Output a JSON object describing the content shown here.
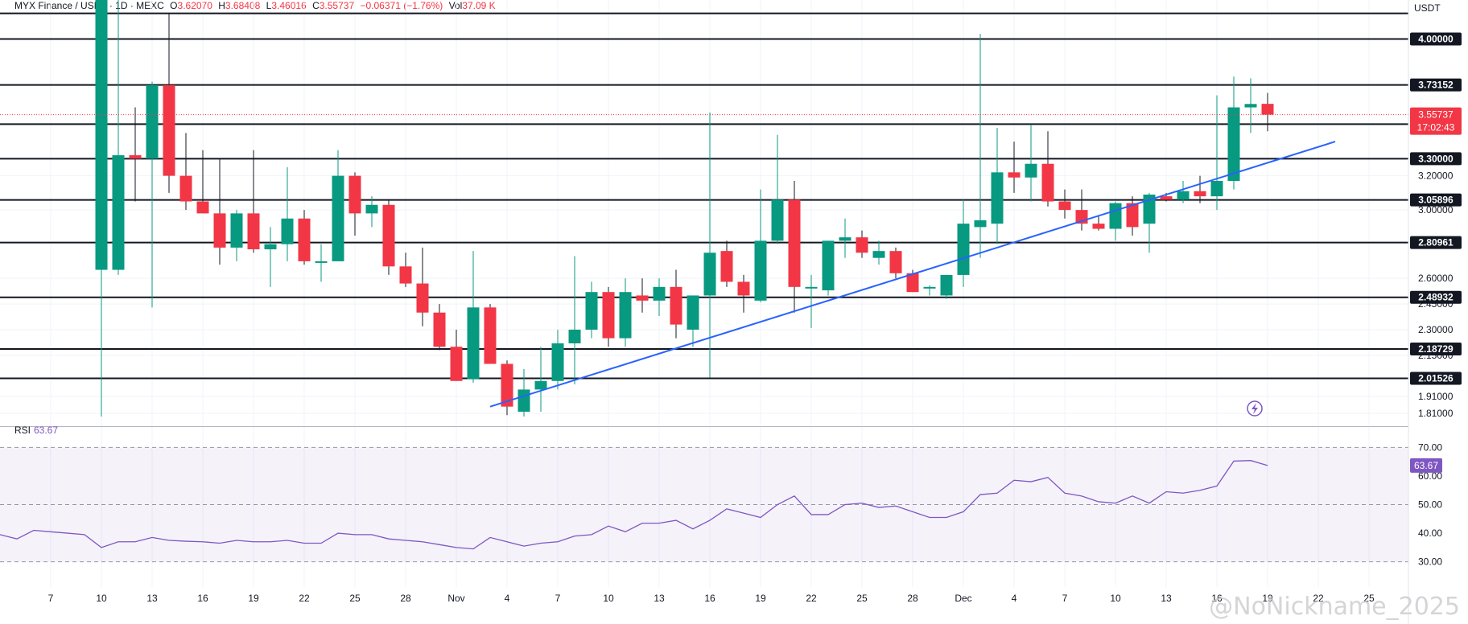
{
  "header": {
    "symbol": "MYX Finance / USDT · 1D · MEXC",
    "o_label": "O",
    "o_value": "3.62070",
    "h_label": "H",
    "h_value": "3.68408",
    "l_label": "L",
    "l_value": "3.46016",
    "c_label": "C",
    "c_value": "3.55737",
    "change": "−0.06371 (−1.76%)",
    "vol_label": "Vol",
    "vol_value": "37.09 K"
  },
  "currency_label": "USDT",
  "rsi_label": "RSI",
  "rsi_value": "63.67",
  "watermark": "@NoNickname_2025",
  "colors": {
    "up": "#089981",
    "down": "#f23645",
    "trendline": "#2962ff",
    "rsi": "#7e57c2"
  },
  "chart_data": [
    {
      "type": "candlestick",
      "title": "MYX Finance / USDT · 1D · MEXC",
      "ylabel": "USDT",
      "ylim": [
        1.8,
        4.2
      ],
      "y_axis_ticks": [
        "4.00000",
        "3.20000",
        "3.00000",
        "2.60000",
        "2.45000",
        "2.30000",
        "2.15000",
        "1.91000",
        "1.81000"
      ],
      "x_tick_labels": [
        {
          "day": 7,
          "label": "7"
        },
        {
          "day": 10,
          "label": "10"
        },
        {
          "day": 13,
          "label": "13"
        },
        {
          "day": 16,
          "label": "16"
        },
        {
          "day": 19,
          "label": "19"
        },
        {
          "day": 22,
          "label": "22"
        },
        {
          "day": 25,
          "label": "25"
        },
        {
          "day": 28,
          "label": "28"
        },
        {
          "day": 31,
          "label": "Nov"
        },
        {
          "day": 34,
          "label": "4"
        },
        {
          "day": 37,
          "label": "7"
        },
        {
          "day": 40,
          "label": "10"
        },
        {
          "day": 43,
          "label": "13"
        },
        {
          "day": 46,
          "label": "16"
        },
        {
          "day": 49,
          "label": "19"
        },
        {
          "day": 52,
          "label": "22"
        },
        {
          "day": 55,
          "label": "25"
        },
        {
          "day": 58,
          "label": "28"
        },
        {
          "day": 61,
          "label": "Dec"
        },
        {
          "day": 64,
          "label": "4"
        },
        {
          "day": 67,
          "label": "7"
        },
        {
          "day": 70,
          "label": "10"
        },
        {
          "day": 73,
          "label": "13"
        },
        {
          "day": 76,
          "label": "16"
        },
        {
          "day": 79,
          "label": "19"
        },
        {
          "day": 82,
          "label": "22"
        },
        {
          "day": 85,
          "label": "25"
        }
      ],
      "levels": [
        "4.00000",
        "3.73152",
        "3.50184",
        "3.30000",
        "3.05896",
        "2.80961",
        "2.48932",
        "2.18729",
        "2.01526"
      ],
      "last_price": "3.55737",
      "countdown": "17:02:43",
      "trendline": {
        "from": {
          "day": 33,
          "price": 1.85
        },
        "to": {
          "day": 83,
          "price": 3.4
        }
      },
      "candles": [
        {
          "d": 10,
          "o": 2.65,
          "h": 4.6,
          "l": 1.78,
          "c": 4.45
        },
        {
          "d": 11,
          "o": 2.65,
          "h": 4.5,
          "l": 2.62,
          "c": 3.32
        },
        {
          "d": 12,
          "o": 3.32,
          "h": 3.6,
          "l": 3.05,
          "c": 3.3
        },
        {
          "d": 13,
          "o": 3.3,
          "h": 3.75,
          "l": 2.43,
          "c": 3.73
        },
        {
          "d": 14,
          "o": 3.73,
          "h": 4.15,
          "l": 3.1,
          "c": 3.2
        },
        {
          "d": 15,
          "o": 3.2,
          "h": 3.45,
          "l": 3.0,
          "c": 3.05
        },
        {
          "d": 16,
          "o": 3.05,
          "h": 3.35,
          "l": 2.98,
          "c": 2.98
        },
        {
          "d": 17,
          "o": 2.98,
          "h": 3.3,
          "l": 2.68,
          "c": 2.78
        },
        {
          "d": 18,
          "o": 2.78,
          "h": 3.0,
          "l": 2.7,
          "c": 2.98
        },
        {
          "d": 19,
          "o": 2.98,
          "h": 3.35,
          "l": 2.75,
          "c": 2.77
        },
        {
          "d": 20,
          "o": 2.77,
          "h": 2.9,
          "l": 2.55,
          "c": 2.8
        },
        {
          "d": 21,
          "o": 2.8,
          "h": 3.25,
          "l": 2.7,
          "c": 2.95
        },
        {
          "d": 22,
          "o": 2.95,
          "h": 3.0,
          "l": 2.68,
          "c": 2.7
        },
        {
          "d": 23,
          "o": 2.7,
          "h": 2.8,
          "l": 2.58,
          "c": 2.7
        },
        {
          "d": 24,
          "o": 2.7,
          "h": 3.35,
          "l": 2.7,
          "c": 3.2
        },
        {
          "d": 25,
          "o": 3.2,
          "h": 3.22,
          "l": 2.85,
          "c": 2.98
        },
        {
          "d": 26,
          "o": 2.98,
          "h": 3.08,
          "l": 2.9,
          "c": 3.03
        },
        {
          "d": 27,
          "o": 3.03,
          "h": 3.06,
          "l": 2.62,
          "c": 2.67
        },
        {
          "d": 28,
          "o": 2.67,
          "h": 2.75,
          "l": 2.55,
          "c": 2.57
        },
        {
          "d": 29,
          "o": 2.57,
          "h": 2.78,
          "l": 2.32,
          "c": 2.4
        },
        {
          "d": 30,
          "o": 2.4,
          "h": 2.45,
          "l": 2.18,
          "c": 2.2
        },
        {
          "d": 31,
          "o": 2.2,
          "h": 2.3,
          "l": 2.0,
          "c": 2.0
        },
        {
          "d": 32,
          "o": 2.01,
          "h": 2.76,
          "l": 1.99,
          "c": 2.43
        },
        {
          "d": 33,
          "o": 2.43,
          "h": 2.45,
          "l": 2.1,
          "c": 2.1
        },
        {
          "d": 34,
          "o": 2.1,
          "h": 2.12,
          "l": 1.8,
          "c": 1.85
        },
        {
          "d": 35,
          "o": 1.82,
          "h": 2.07,
          "l": 1.78,
          "c": 1.95
        },
        {
          "d": 36,
          "o": 1.95,
          "h": 2.2,
          "l": 1.82,
          "c": 2.0
        },
        {
          "d": 37,
          "o": 2.0,
          "h": 2.3,
          "l": 1.95,
          "c": 2.22
        },
        {
          "d": 38,
          "o": 2.22,
          "h": 2.73,
          "l": 1.98,
          "c": 2.3
        },
        {
          "d": 39,
          "o": 2.3,
          "h": 2.58,
          "l": 2.25,
          "c": 2.52
        },
        {
          "d": 40,
          "o": 2.52,
          "h": 2.55,
          "l": 2.2,
          "c": 2.25
        },
        {
          "d": 41,
          "o": 2.25,
          "h": 2.6,
          "l": 2.2,
          "c": 2.52
        },
        {
          "d": 42,
          "o": 2.5,
          "h": 2.6,
          "l": 2.4,
          "c": 2.47
        },
        {
          "d": 43,
          "o": 2.47,
          "h": 2.6,
          "l": 2.38,
          "c": 2.55
        },
        {
          "d": 44,
          "o": 2.55,
          "h": 2.65,
          "l": 2.25,
          "c": 2.33
        },
        {
          "d": 45,
          "o": 2.3,
          "h": 2.5,
          "l": 2.2,
          "c": 2.5
        },
        {
          "d": 46,
          "o": 2.5,
          "h": 3.57,
          "l": 2.02,
          "c": 2.75
        },
        {
          "d": 47,
          "o": 2.76,
          "h": 2.82,
          "l": 2.55,
          "c": 2.58
        },
        {
          "d": 48,
          "o": 2.58,
          "h": 2.62,
          "l": 2.4,
          "c": 2.5
        },
        {
          "d": 49,
          "o": 2.47,
          "h": 3.12,
          "l": 2.46,
          "c": 2.82
        },
        {
          "d": 50,
          "o": 2.82,
          "h": 3.44,
          "l": 2.8,
          "c": 3.06
        },
        {
          "d": 51,
          "o": 3.06,
          "h": 3.17,
          "l": 2.4,
          "c": 2.55
        },
        {
          "d": 52,
          "o": 2.55,
          "h": 2.62,
          "l": 2.31,
          "c": 2.55
        },
        {
          "d": 53,
          "o": 2.53,
          "h": 2.82,
          "l": 2.5,
          "c": 2.82
        },
        {
          "d": 54,
          "o": 2.82,
          "h": 2.95,
          "l": 2.72,
          "c": 2.84
        },
        {
          "d": 55,
          "o": 2.84,
          "h": 2.88,
          "l": 2.72,
          "c": 2.75
        },
        {
          "d": 56,
          "o": 2.72,
          "h": 2.82,
          "l": 2.68,
          "c": 2.76
        },
        {
          "d": 57,
          "o": 2.76,
          "h": 2.78,
          "l": 2.6,
          "c": 2.63
        },
        {
          "d": 58,
          "o": 2.63,
          "h": 2.65,
          "l": 2.52,
          "c": 2.52
        },
        {
          "d": 59,
          "o": 2.55,
          "h": 2.56,
          "l": 2.5,
          "c": 2.55
        },
        {
          "d": 60,
          "o": 2.5,
          "h": 2.6,
          "l": 2.48,
          "c": 2.62
        },
        {
          "d": 61,
          "o": 2.62,
          "h": 3.06,
          "l": 2.55,
          "c": 2.92
        },
        {
          "d": 62,
          "o": 2.9,
          "h": 4.03,
          "l": 2.72,
          "c": 2.94
        },
        {
          "d": 63,
          "o": 2.92,
          "h": 3.48,
          "l": 2.8,
          "c": 3.22
        },
        {
          "d": 64,
          "o": 3.22,
          "h": 3.4,
          "l": 3.1,
          "c": 3.19
        },
        {
          "d": 65,
          "o": 3.19,
          "h": 3.5,
          "l": 3.05,
          "c": 3.27
        },
        {
          "d": 66,
          "o": 3.27,
          "h": 3.46,
          "l": 3.02,
          "c": 3.05
        },
        {
          "d": 67,
          "o": 3.05,
          "h": 3.12,
          "l": 2.95,
          "c": 3.0
        },
        {
          "d": 68,
          "o": 3.0,
          "h": 3.12,
          "l": 2.88,
          "c": 2.92
        },
        {
          "d": 69,
          "o": 2.92,
          "h": 2.97,
          "l": 2.88,
          "c": 2.89
        },
        {
          "d": 70,
          "o": 2.89,
          "h": 3.05,
          "l": 2.82,
          "c": 3.04
        },
        {
          "d": 71,
          "o": 3.04,
          "h": 3.08,
          "l": 2.85,
          "c": 2.9
        },
        {
          "d": 72,
          "o": 2.92,
          "h": 3.1,
          "l": 2.75,
          "c": 3.09
        },
        {
          "d": 73,
          "o": 3.08,
          "h": 3.1,
          "l": 3.05,
          "c": 3.06
        },
        {
          "d": 74,
          "o": 3.06,
          "h": 3.17,
          "l": 3.04,
          "c": 3.11
        },
        {
          "d": 75,
          "o": 3.11,
          "h": 3.2,
          "l": 3.04,
          "c": 3.08
        },
        {
          "d": 76,
          "o": 3.08,
          "h": 3.67,
          "l": 3.0,
          "c": 3.17
        },
        {
          "d": 77,
          "o": 3.17,
          "h": 3.78,
          "l": 3.12,
          "c": 3.6
        },
        {
          "d": 78,
          "o": 3.6,
          "h": 3.77,
          "l": 3.45,
          "c": 3.62
        },
        {
          "d": 79,
          "o": 3.6207,
          "h": 3.68408,
          "l": 3.46016,
          "c": 3.55737
        }
      ]
    },
    {
      "type": "line",
      "title": "RSI",
      "ylim": [
        24,
        76
      ],
      "y_axis_ticks": [
        "70.00",
        "60.00",
        "50.00",
        "40.00",
        "30.00"
      ],
      "bands": [
        30,
        50,
        70
      ],
      "last_value": "63.67",
      "series": [
        {
          "name": "RSI",
          "values": [
            39.5,
            38,
            41,
            40.5,
            40,
            39.5,
            35,
            37,
            37,
            38.5,
            37.5,
            37.2,
            37,
            36.5,
            37.5,
            37,
            37,
            37.5,
            36.5,
            36.5,
            40,
            39.5,
            39.5,
            38,
            37.5,
            37,
            36,
            35,
            34.5,
            38.5,
            37,
            35.5,
            36.5,
            37,
            39,
            39.5,
            42.5,
            40.5,
            43.5,
            43.5,
            44.5,
            41.5,
            44.5,
            48.5,
            47,
            45.5,
            50,
            53,
            46.5,
            46.5,
            50,
            50.5,
            49,
            49.5,
            47.5,
            45.5,
            45.5,
            47.5,
            53.5,
            54,
            58.5,
            58,
            59.5,
            54,
            53,
            51,
            50.5,
            53,
            50.5,
            54.5,
            54,
            55,
            56.5,
            65.2,
            65.4,
            63.67
          ],
          "start_day": 4
        }
      ]
    }
  ]
}
